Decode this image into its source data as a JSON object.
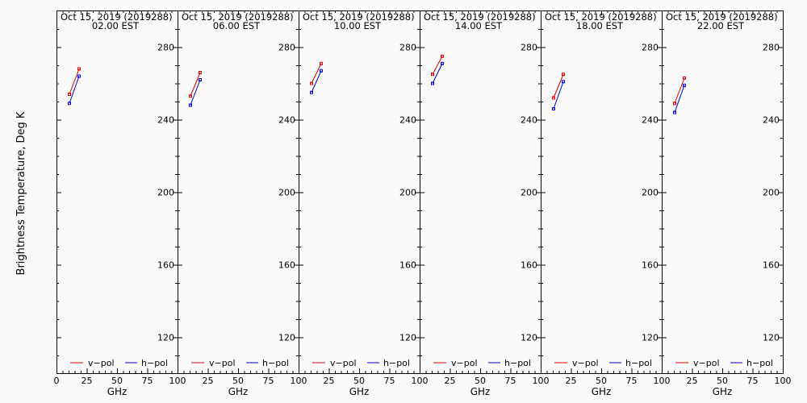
{
  "ylabel": "Brightness Temperature, Deg K",
  "colors": {
    "v_pol": "#d40000",
    "h_pol": "#0000cc",
    "background": "#fafafa",
    "axis": "#000000"
  },
  "shared_axes": {
    "xlabel": "GHz",
    "xlim": [
      0,
      100
    ],
    "ylim": [
      100,
      295
    ],
    "xticks": [
      0,
      25,
      50,
      75,
      100
    ],
    "xtick_labels_panel1": [
      "0",
      "25",
      "50",
      "75",
      "100"
    ],
    "xtick_labels_other": [
      "25",
      "50",
      "75",
      "100"
    ],
    "yticks": [
      120,
      160,
      200,
      240,
      280
    ],
    "ytick_labels": [
      "120",
      "160",
      "200",
      "240",
      "280"
    ]
  },
  "legend": [
    "v−pol",
    "h−pol"
  ],
  "chart_data": [
    {
      "type": "line",
      "title": "Oct 15, 2019 (2019288)",
      "subtitle": "02.00 EST",
      "x": [
        10.65,
        18.7
      ],
      "series": [
        {
          "name": "v−pol",
          "values": [
            254,
            268
          ]
        },
        {
          "name": "h−pol",
          "values": [
            249,
            264
          ]
        }
      ]
    },
    {
      "type": "line",
      "title": "Oct 15, 2019 (2019288)",
      "subtitle": "06.00 EST",
      "x": [
        10.65,
        18.7
      ],
      "series": [
        {
          "name": "v−pol",
          "values": [
            253,
            266
          ]
        },
        {
          "name": "h−pol",
          "values": [
            248,
            262
          ]
        }
      ]
    },
    {
      "type": "line",
      "title": "Oct 15, 2019 (2019288)",
      "subtitle": "10.00 EST",
      "x": [
        10.65,
        18.7
      ],
      "series": [
        {
          "name": "v−pol",
          "values": [
            260,
            271
          ]
        },
        {
          "name": "h−pol",
          "values": [
            255,
            267
          ]
        }
      ]
    },
    {
      "type": "line",
      "title": "Oct 15, 2019 (2019288)",
      "subtitle": "14.00 EST",
      "x": [
        10.65,
        18.7
      ],
      "series": [
        {
          "name": "v−pol",
          "values": [
            265,
            275
          ]
        },
        {
          "name": "h−pol",
          "values": [
            260,
            271
          ]
        }
      ]
    },
    {
      "type": "line",
      "title": "Oct 15, 2019 (2019288)",
      "subtitle": "18.00 EST",
      "x": [
        10.65,
        18.7
      ],
      "series": [
        {
          "name": "v−pol",
          "values": [
            252,
            265
          ]
        },
        {
          "name": "h−pol",
          "values": [
            246,
            261
          ]
        }
      ]
    },
    {
      "type": "line",
      "title": "Oct 15, 2019 (2019288)",
      "subtitle": "22.00 EST",
      "x": [
        10.65,
        18.7
      ],
      "series": [
        {
          "name": "v−pol",
          "values": [
            249,
            263
          ]
        },
        {
          "name": "h−pol",
          "values": [
            244,
            259
          ]
        }
      ]
    }
  ]
}
